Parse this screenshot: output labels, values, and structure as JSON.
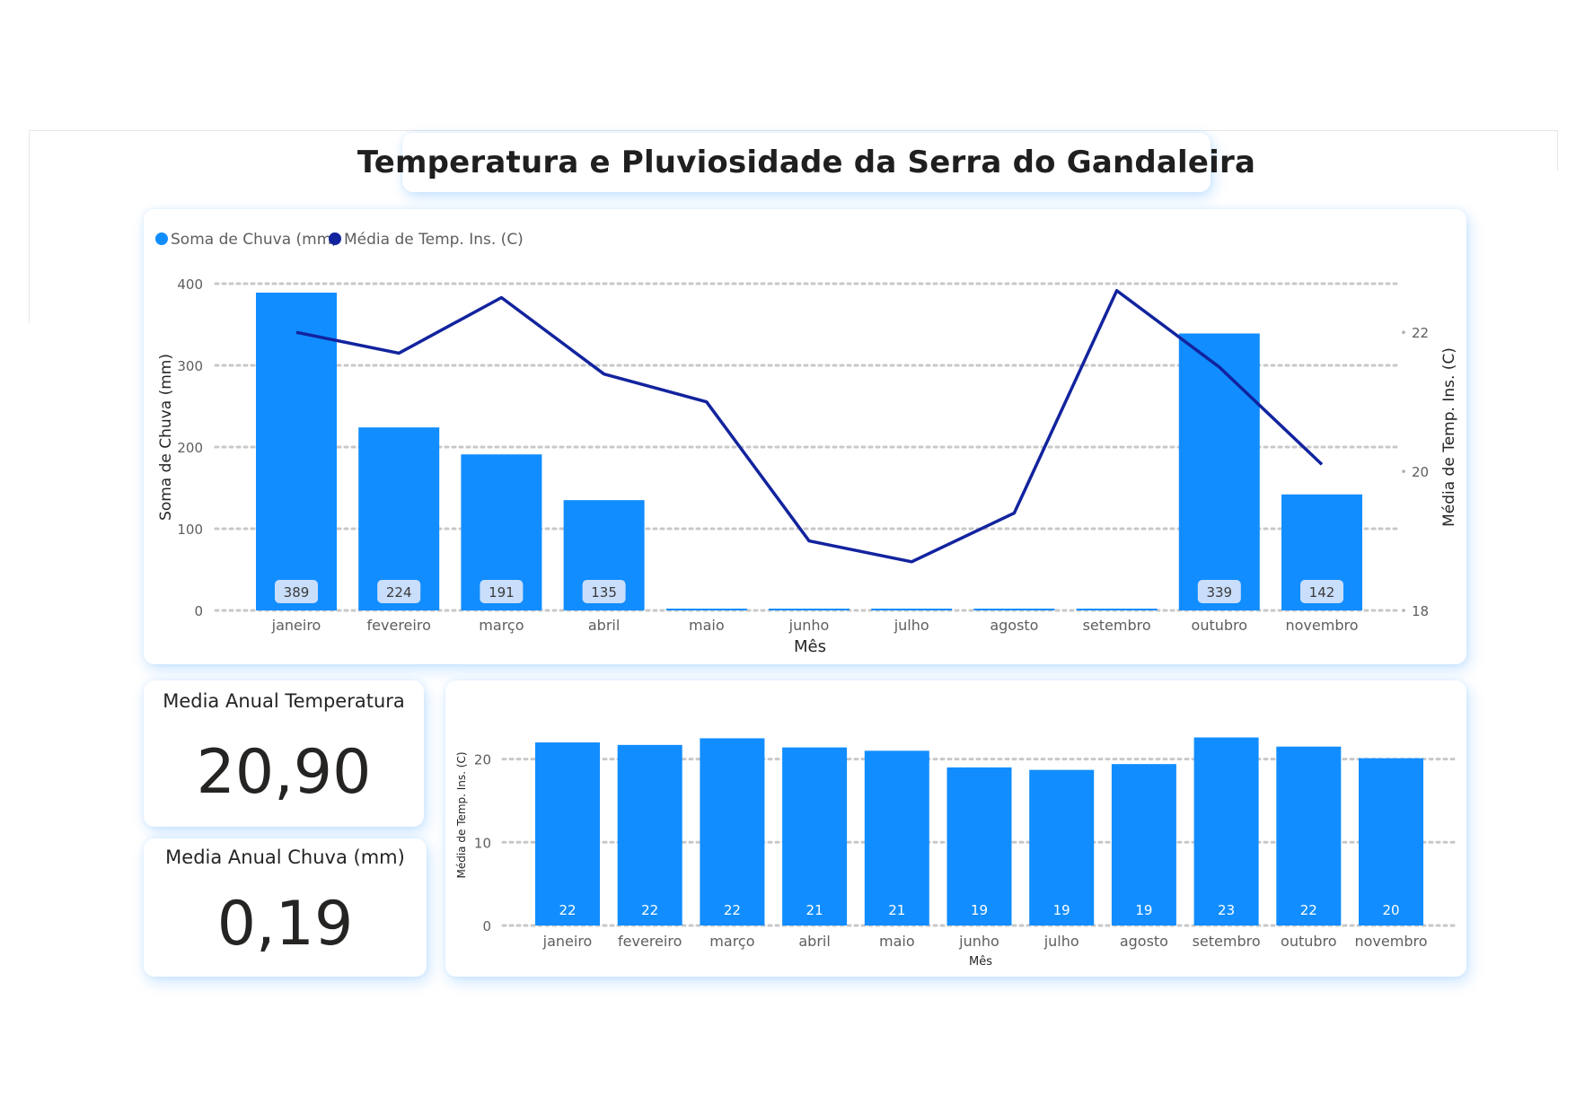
{
  "title": "Temperatura e Pluviosidade da Serra do Gandaleira",
  "kpis": {
    "temperature": {
      "label": "Media Anual Temperatura",
      "value": "20,90"
    },
    "rain": {
      "label": "Media Anual Chuva (mm)",
      "value": "0,19"
    }
  },
  "colors": {
    "bar": "#118DFF",
    "line": "#12239E",
    "label_bg": "#C9DEFA",
    "grid": "#c8c8c8"
  },
  "chart_data": [
    {
      "type": "bar",
      "combo": "bar+line",
      "categories": [
        "janeiro",
        "fevereiro",
        "março",
        "abril",
        "maio",
        "junho",
        "julho",
        "agosto",
        "setembro",
        "outubro",
        "novembro"
      ],
      "series": [
        {
          "name": "Soma de Chuva (mm)",
          "type": "bar",
          "axis": "left",
          "values": [
            389,
            224,
            191,
            135,
            1,
            1,
            1,
            1,
            2,
            339,
            142
          ],
          "data_labels": [
            "389",
            "224",
            "191",
            "135",
            "",
            "",
            "",
            "",
            "",
            "339",
            "142"
          ]
        },
        {
          "name": "Média de Temp. Ins. (C)",
          "type": "line",
          "axis": "right",
          "values": [
            22.0,
            21.7,
            22.5,
            21.4,
            21.0,
            19.0,
            18.7,
            19.4,
            22.6,
            21.5,
            20.1
          ]
        }
      ],
      "xlabel": "Mês",
      "ylabel": "Soma de Chuva (mm)",
      "y2label": "Média de Temp. Ins. (C)",
      "ylim": [
        0,
        400
      ],
      "yticks": [
        0,
        100,
        200,
        300,
        400
      ],
      "y2lim": [
        18,
        22.7
      ],
      "y2ticks": [
        18,
        20,
        22
      ],
      "grid": true,
      "legend": "top-left"
    },
    {
      "type": "bar",
      "categories": [
        "janeiro",
        "fevereiro",
        "março",
        "abril",
        "maio",
        "junho",
        "julho",
        "agosto",
        "setembro",
        "outubro",
        "novembro"
      ],
      "series": [
        {
          "name": "",
          "values": [
            22.0,
            21.7,
            22.5,
            21.4,
            21.0,
            19.0,
            18.7,
            19.4,
            22.6,
            21.5,
            20.1
          ],
          "data_labels": [
            "22",
            "22",
            "22",
            "21",
            "21",
            "19",
            "19",
            "19",
            "23",
            "22",
            "20"
          ]
        }
      ],
      "xlabel": "Mês",
      "ylabel": "Média de Temp. Ins. (C)",
      "ylim": [
        0,
        26
      ],
      "yticks": [
        0,
        10,
        20
      ],
      "grid": true
    }
  ]
}
